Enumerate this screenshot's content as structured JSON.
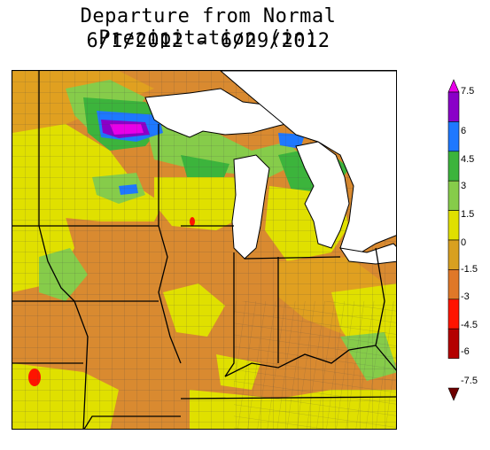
{
  "title": {
    "line1": "Departure from Normal Precipitation (in)",
    "line2": "6/1/2012 - 6/29/2012"
  },
  "legend": {
    "labels": [
      "7.5",
      "6",
      "4.5",
      "3",
      "1.5",
      "0",
      "-1.5",
      "-3",
      "-4.5",
      "-6",
      "-7.5"
    ],
    "colors": [
      "#e800e8",
      "#8a00c8",
      "#1e78ff",
      "#3cb43c",
      "#86cc4a",
      "#e0e000",
      "#d8a020",
      "#e07828",
      "#ff1400",
      "#b40000",
      "#6e0000"
    ],
    "top_color": "#e800e8",
    "bottom_color": "#6e0000"
  },
  "map": {
    "water_color": "#ffffff",
    "land_base": "#d98a30",
    "county_line_color": "#555555",
    "state_line_color": "#000000"
  }
}
